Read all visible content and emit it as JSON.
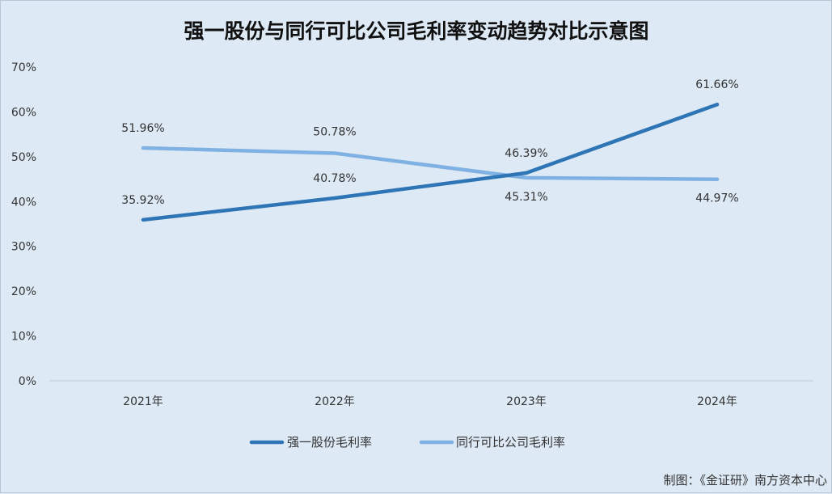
{
  "chart_data": {
    "type": "line",
    "title": "强一股份与同行可比公司毛利率变动趋势对比示意图",
    "categories": [
      "2021年",
      "2022年",
      "2023年",
      "2024年"
    ],
    "ylim": [
      0,
      70
    ],
    "y_ticks": [
      "0%",
      "10%",
      "20%",
      "30%",
      "40%",
      "50%",
      "60%",
      "70%"
    ],
    "series": [
      {
        "name": "强一股份毛利率",
        "values": [
          35.92,
          40.78,
          46.39,
          61.66
        ],
        "labels": [
          "35.92%",
          "40.78%",
          "46.39%",
          "61.66%"
        ],
        "color": "#2e75b6"
      },
      {
        "name": "同行可比公司毛利率",
        "values": [
          51.96,
          50.78,
          45.31,
          44.97
        ],
        "labels": [
          "51.96%",
          "50.78%",
          "45.31%",
          "44.97%"
        ],
        "color": "#7fb2e2"
      }
    ],
    "legend_position": "bottom",
    "grid": false
  },
  "footer": {
    "credit": "制图：《金证研》南方资本中心"
  }
}
